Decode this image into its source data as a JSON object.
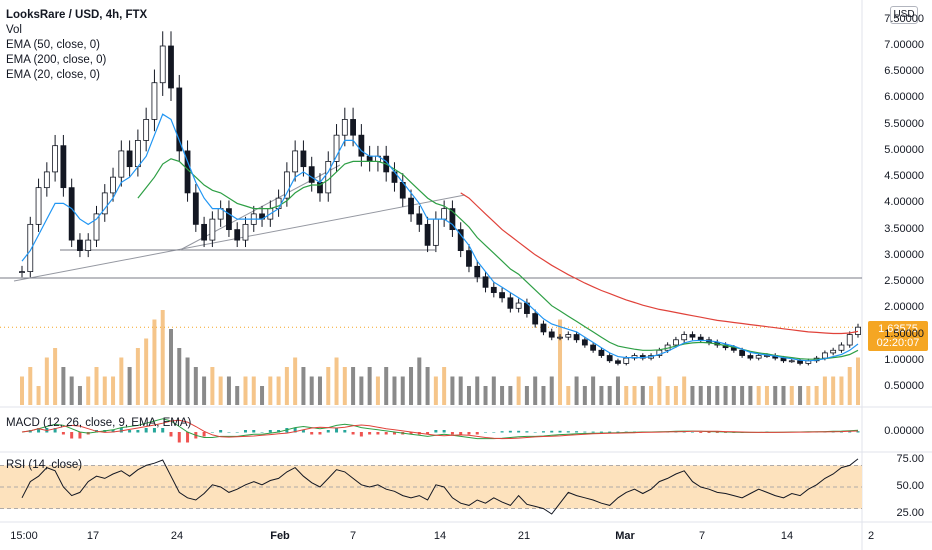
{
  "legend": {
    "title": "LooksRare / USD, 4h, FTX",
    "vol": "Vol",
    "ema50": "EMA (50, close, 0)",
    "ema200": "EMA (200, close, 0)",
    "ema20": "EMA (20, close, 0)",
    "macd": "MACD (12, 26, close, 9, EMA, EMA)",
    "rsi": "RSI (14, close)"
  },
  "currency_badge": "USD",
  "last_price": "1.63575",
  "countdown": "02:20:07",
  "colors": {
    "ema50": "#2e9f45",
    "ema200": "#e0423a",
    "ema20": "#2196f3",
    "vol_up": "#f5c58a",
    "vol_down": "#8a8a8a",
    "rsi_band": "#fde2bd",
    "price_tag": "#f5a623"
  },
  "chart_data": {
    "type": "candlestick",
    "price_axis": {
      "ticks": [
        "7.50000",
        "7.00000",
        "6.50000",
        "6.00000",
        "5.50000",
        "5.00000",
        "4.50000",
        "4.00000",
        "3.50000",
        "3.00000",
        "2.50000",
        "2.00000",
        "1.50000",
        "1.00000",
        "0.50000"
      ],
      "range": [
        0.3,
        7.5
      ]
    },
    "macd_axis": {
      "ticks": [
        "0.00000"
      ]
    },
    "rsi_axis": {
      "ticks": [
        "75.00",
        "50.00",
        "25.00"
      ],
      "band": [
        30,
        70
      ]
    },
    "x_axis": {
      "labels": [
        {
          "text": "15:00",
          "bold": false
        },
        {
          "text": "17",
          "bold": false
        },
        {
          "text": "24",
          "bold": false
        },
        {
          "text": "Feb",
          "bold": true
        },
        {
          "text": "7",
          "bold": false
        },
        {
          "text": "14",
          "bold": false
        },
        {
          "text": "21",
          "bold": false
        },
        {
          "text": "Mar",
          "bold": true
        },
        {
          "text": "7",
          "bold": false
        },
        {
          "text": "14",
          "bold": false
        },
        {
          "text": "2",
          "bold": false
        }
      ]
    },
    "close_series": [
      2.7,
      3.6,
      4.3,
      4.6,
      5.1,
      4.3,
      3.3,
      3.1,
      3.3,
      3.8,
      4.2,
      4.5,
      5.0,
      4.7,
      5.2,
      5.6,
      6.3,
      7.0,
      6.2,
      5.0,
      4.2,
      3.6,
      3.3,
      3.7,
      3.9,
      3.5,
      3.3,
      3.6,
      3.8,
      3.7,
      3.9,
      4.1,
      4.6,
      5.0,
      4.7,
      4.4,
      4.2,
      4.8,
      5.3,
      5.6,
      5.3,
      4.9,
      4.8,
      4.9,
      4.6,
      4.4,
      4.1,
      3.8,
      3.6,
      3.2,
      3.7,
      3.9,
      3.5,
      3.1,
      2.8,
      2.6,
      2.4,
      2.3,
      2.2,
      2.0,
      2.1,
      1.9,
      1.7,
      1.55,
      1.45,
      1.45,
      1.5,
      1.4,
      1.3,
      1.2,
      1.1,
      1.0,
      0.95,
      1.05,
      1.1,
      1.05,
      1.1,
      1.2,
      1.3,
      1.4,
      1.5,
      1.45,
      1.4,
      1.35,
      1.3,
      1.25,
      1.2,
      1.1,
      1.05,
      1.1,
      1.1,
      1.05,
      1.0,
      1.0,
      0.95,
      1.0,
      1.05,
      1.15,
      1.2,
      1.3,
      1.5,
      1.64
    ],
    "ema20": [
      2.9,
      3.1,
      3.4,
      3.7,
      4.0,
      4.0,
      3.9,
      3.7,
      3.6,
      3.7,
      3.9,
      4.1,
      4.4,
      4.5,
      4.7,
      4.9,
      5.3,
      5.7,
      5.6,
      5.2,
      4.8,
      4.4,
      4.1,
      3.9,
      3.9,
      3.8,
      3.7,
      3.7,
      3.7,
      3.7,
      3.8,
      3.9,
      4.2,
      4.5,
      4.6,
      4.5,
      4.4,
      4.6,
      4.9,
      5.2,
      5.2,
      5.0,
      4.9,
      4.9,
      4.8,
      4.6,
      4.4,
      4.2,
      4.0,
      3.7,
      3.7,
      3.7,
      3.6,
      3.4,
      3.2,
      2.9,
      2.7,
      2.5,
      2.4,
      2.3,
      2.2,
      2.1,
      1.95,
      1.8,
      1.7,
      1.65,
      1.6,
      1.55,
      1.45,
      1.35,
      1.25,
      1.15,
      1.08,
      1.06,
      1.06,
      1.06,
      1.08,
      1.12,
      1.18,
      1.26,
      1.34,
      1.38,
      1.39,
      1.38,
      1.36,
      1.32,
      1.28,
      1.22,
      1.16,
      1.13,
      1.11,
      1.09,
      1.06,
      1.04,
      1.01,
      1.0,
      1.01,
      1.04,
      1.08,
      1.12,
      1.2,
      1.32
    ],
    "ema50": [
      null,
      null,
      null,
      null,
      null,
      null,
      null,
      null,
      null,
      null,
      null,
      null,
      null,
      null,
      4.1,
      4.3,
      4.5,
      4.75,
      4.85,
      4.8,
      4.65,
      4.5,
      4.35,
      4.25,
      4.2,
      4.1,
      4.0,
      3.95,
      3.9,
      3.9,
      3.9,
      3.95,
      4.05,
      4.2,
      4.3,
      4.35,
      4.35,
      4.45,
      4.6,
      4.75,
      4.8,
      4.8,
      4.8,
      4.8,
      4.75,
      4.65,
      4.55,
      4.4,
      4.25,
      4.1,
      4.0,
      3.95,
      3.85,
      3.7,
      3.55,
      3.35,
      3.2,
      3.05,
      2.9,
      2.75,
      2.65,
      2.5,
      2.35,
      2.2,
      2.05,
      1.95,
      1.85,
      1.75,
      1.65,
      1.55,
      1.45,
      1.35,
      1.28,
      1.25,
      1.22,
      1.2,
      1.2,
      1.21,
      1.24,
      1.28,
      1.32,
      1.34,
      1.35,
      1.34,
      1.32,
      1.29,
      1.26,
      1.22,
      1.18,
      1.15,
      1.13,
      1.1,
      1.08,
      1.06,
      1.04,
      1.03,
      1.03,
      1.04,
      1.06,
      1.08,
      1.12,
      1.2
    ],
    "ema200": [
      null,
      null,
      null,
      null,
      null,
      null,
      null,
      null,
      null,
      null,
      null,
      null,
      null,
      null,
      null,
      null,
      null,
      null,
      null,
      null,
      null,
      null,
      null,
      null,
      null,
      null,
      null,
      null,
      null,
      null,
      null,
      null,
      null,
      null,
      null,
      null,
      null,
      null,
      null,
      null,
      null,
      null,
      null,
      null,
      null,
      null,
      null,
      null,
      null,
      null,
      null,
      null,
      null,
      4.2,
      4.1,
      3.95,
      3.8,
      3.65,
      3.5,
      3.38,
      3.26,
      3.14,
      3.02,
      2.92,
      2.82,
      2.73,
      2.64,
      2.56,
      2.48,
      2.41,
      2.34,
      2.28,
      2.22,
      2.16,
      2.11,
      2.06,
      2.02,
      1.98,
      1.95,
      1.92,
      1.89,
      1.86,
      1.83,
      1.8,
      1.77,
      1.75,
      1.73,
      1.71,
      1.69,
      1.67,
      1.65,
      1.63,
      1.61,
      1.59,
      1.57,
      1.55,
      1.54,
      1.53,
      1.52,
      1.52,
      1.53,
      1.56
    ],
    "volume": [
      3,
      4,
      2,
      5,
      6,
      4,
      3,
      2,
      3,
      4,
      3,
      3,
      5,
      4,
      6,
      7,
      9,
      10,
      8,
      6,
      5,
      4,
      3,
      4,
      3,
      3,
      2,
      3,
      3,
      2,
      3,
      3,
      4,
      5,
      4,
      3,
      3,
      4,
      5,
      4,
      4,
      3,
      4,
      3,
      4,
      3,
      3,
      4,
      5,
      4,
      3,
      4,
      3,
      3,
      2,
      3,
      2,
      3,
      2,
      2,
      3,
      2,
      3,
      2,
      3,
      9,
      2,
      3,
      2,
      3,
      2,
      2,
      3,
      2,
      2,
      2,
      2,
      3,
      2,
      2,
      3,
      2,
      2,
      2,
      2,
      2,
      2,
      2,
      2,
      2,
      2,
      2,
      2,
      2,
      2,
      2,
      2,
      3,
      3,
      3,
      4,
      5
    ],
    "macd_line": [
      0,
      0.05,
      0.15,
      0.25,
      0.35,
      0.3,
      0.15,
      0.0,
      -0.05,
      0.0,
      0.05,
      0.1,
      0.2,
      0.25,
      0.3,
      0.4,
      0.5,
      0.6,
      0.5,
      0.25,
      0.0,
      -0.15,
      -0.25,
      -0.25,
      -0.2,
      -0.2,
      -0.2,
      -0.15,
      -0.1,
      -0.1,
      -0.05,
      0.0,
      0.1,
      0.2,
      0.25,
      0.2,
      0.15,
      0.2,
      0.3,
      0.35,
      0.3,
      0.2,
      0.15,
      0.1,
      0.05,
      0.0,
      -0.05,
      -0.1,
      -0.15,
      -0.2,
      -0.15,
      -0.1,
      -0.15,
      -0.2,
      -0.25,
      -0.3,
      -0.3,
      -0.3,
      -0.28,
      -0.25,
      -0.22,
      -0.2,
      -0.2,
      -0.18,
      -0.15,
      -0.12,
      -0.1,
      -0.08,
      -0.07,
      -0.06,
      -0.05,
      -0.04,
      -0.03,
      -0.02,
      -0.01,
      0.0,
      0.0,
      0.01,
      0.02,
      0.03,
      0.04,
      0.04,
      0.03,
      0.02,
      0.01,
      0.0,
      -0.01,
      -0.02,
      -0.02,
      -0.02,
      -0.01,
      -0.01,
      -0.01,
      0.0,
      0.0,
      0.01,
      0.01,
      0.02,
      0.03,
      0.04,
      0.06,
      0.08
    ],
    "rsi": [
      40,
      55,
      60,
      68,
      65,
      50,
      42,
      45,
      55,
      60,
      58,
      62,
      65,
      60,
      66,
      70,
      72,
      75,
      60,
      45,
      40,
      38,
      44,
      52,
      50,
      45,
      48,
      52,
      55,
      52,
      56,
      58,
      64,
      68,
      60,
      54,
      50,
      58,
      66,
      64,
      58,
      52,
      50,
      52,
      48,
      46,
      42,
      40,
      42,
      38,
      52,
      50,
      40,
      35,
      33,
      38,
      35,
      40,
      36,
      33,
      42,
      34,
      32,
      30,
      25,
      35,
      45,
      42,
      40,
      38,
      35,
      33,
      40,
      45,
      48,
      44,
      48,
      55,
      58,
      62,
      65,
      55,
      50,
      48,
      45,
      44,
      42,
      40,
      44,
      48,
      45,
      42,
      40,
      44,
      42,
      48,
      52,
      58,
      62,
      68,
      70,
      76
    ]
  }
}
